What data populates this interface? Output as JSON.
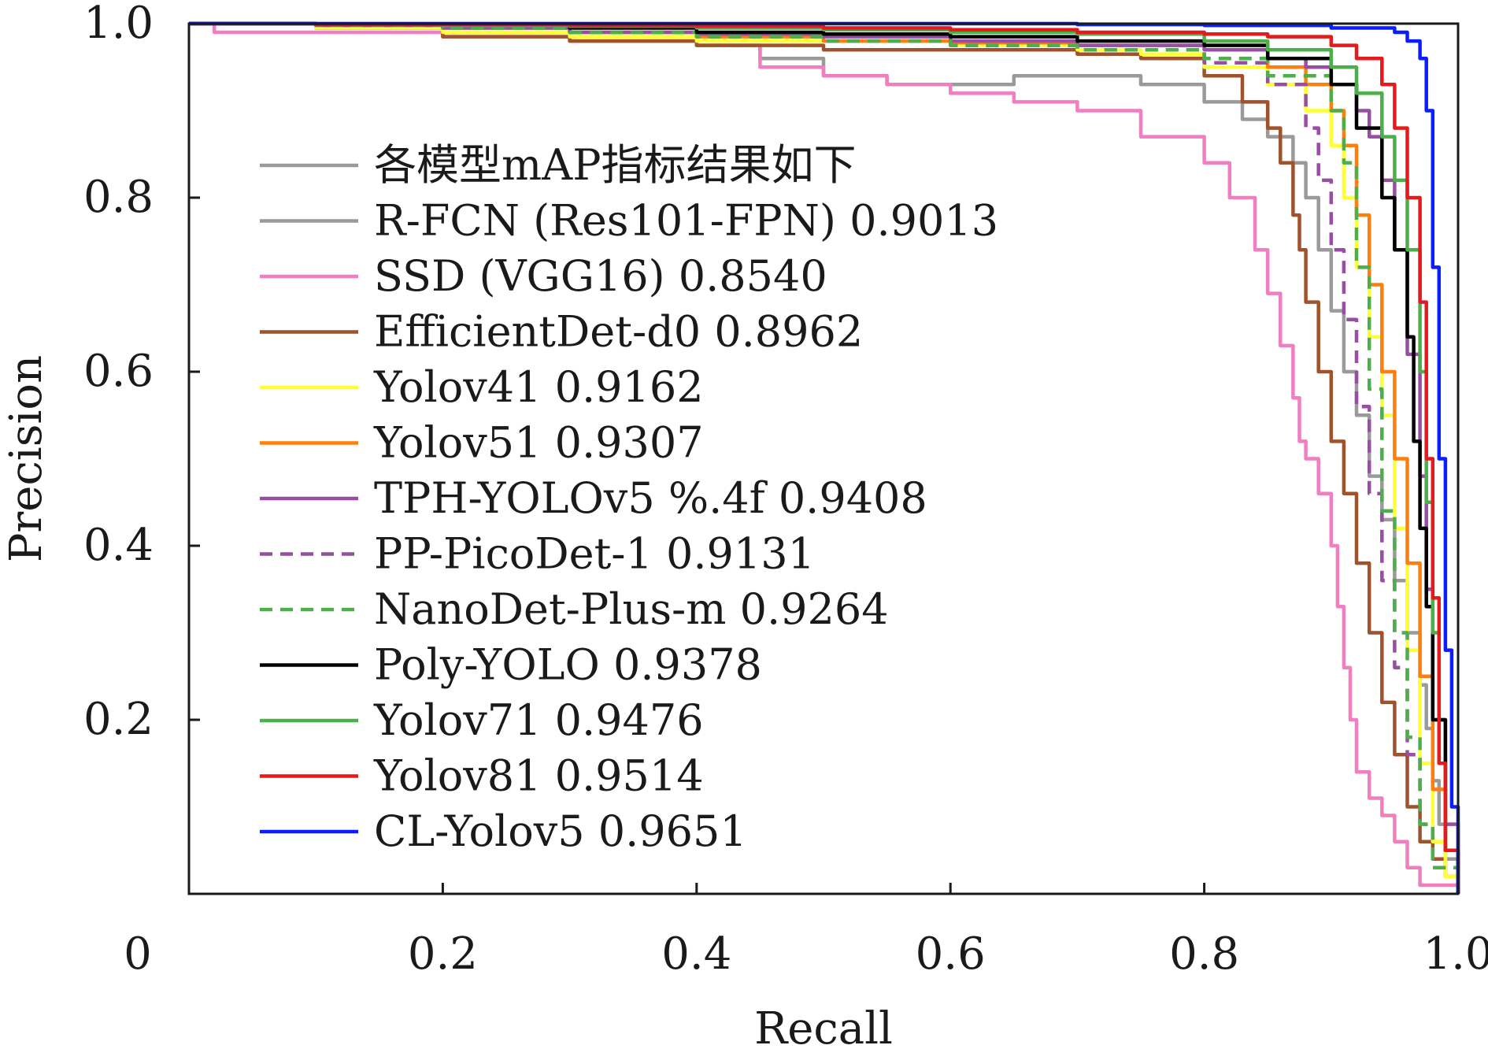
{
  "chart_data": {
    "type": "line",
    "xlabel": "Recall",
    "ylabel": "Precision",
    "xlim": [
      0,
      1.0
    ],
    "ylim": [
      0,
      1.0
    ],
    "x_ticks": [
      "0",
      "0.2",
      "0.4",
      "0.6",
      "0.8",
      "1.0"
    ],
    "y_ticks": [
      "0.2",
      "0.4",
      "0.6",
      "0.8",
      "1.0"
    ],
    "grid": false,
    "legend_position": "center-left",
    "legend_title": "各模型mAP指标结果如下",
    "legend_title_color": "#9a9a9a",
    "series": [
      {
        "name": "R-FCN (Res101-FPN) 0.9013",
        "color": "#9a9a9a",
        "dash": "solid",
        "x": [
          0.0,
          0.1,
          0.2,
          0.3,
          0.4,
          0.45,
          0.5,
          0.55,
          0.6,
          0.65,
          0.7,
          0.75,
          0.8,
          0.83,
          0.85,
          0.87,
          0.88,
          0.89,
          0.9,
          0.91,
          0.92,
          0.93,
          0.94,
          0.95,
          0.96,
          0.97,
          0.975,
          0.98,
          0.985,
          0.99,
          1.0
        ],
        "y": [
          1.0,
          0.995,
          0.99,
          0.985,
          0.975,
          0.96,
          0.94,
          0.93,
          0.93,
          0.94,
          0.94,
          0.93,
          0.91,
          0.89,
          0.87,
          0.84,
          0.8,
          0.74,
          0.67,
          0.6,
          0.55,
          0.48,
          0.43,
          0.36,
          0.3,
          0.24,
          0.19,
          0.13,
          0.08,
          0.04,
          0.0
        ]
      },
      {
        "name": "SSD (VGG16) 0.8540",
        "color": "#f07ec0",
        "dash": "solid",
        "x": [
          0.0,
          0.02,
          0.05,
          0.1,
          0.2,
          0.3,
          0.4,
          0.45,
          0.5,
          0.55,
          0.6,
          0.65,
          0.7,
          0.75,
          0.8,
          0.82,
          0.84,
          0.85,
          0.86,
          0.87,
          0.875,
          0.88,
          0.89,
          0.9,
          0.905,
          0.91,
          0.915,
          0.92,
          0.93,
          0.94,
          0.95,
          0.96,
          0.97,
          1.0
        ],
        "y": [
          1.0,
          0.99,
          0.99,
          0.99,
          0.985,
          0.98,
          0.975,
          0.95,
          0.94,
          0.93,
          0.92,
          0.91,
          0.9,
          0.87,
          0.84,
          0.8,
          0.74,
          0.69,
          0.63,
          0.57,
          0.52,
          0.5,
          0.46,
          0.4,
          0.33,
          0.26,
          0.2,
          0.14,
          0.11,
          0.09,
          0.06,
          0.03,
          0.01,
          0.0
        ]
      },
      {
        "name": "EfficientDet-d0 0.8962",
        "color": "#a0522d",
        "dash": "solid",
        "x": [
          0.0,
          0.1,
          0.2,
          0.3,
          0.4,
          0.5,
          0.6,
          0.7,
          0.75,
          0.8,
          0.83,
          0.85,
          0.86,
          0.87,
          0.875,
          0.88,
          0.89,
          0.9,
          0.91,
          0.92,
          0.93,
          0.94,
          0.95,
          0.96,
          0.97,
          0.98,
          0.99,
          1.0
        ],
        "y": [
          1.0,
          0.995,
          0.985,
          0.98,
          0.975,
          0.97,
          0.97,
          0.965,
          0.96,
          0.94,
          0.91,
          0.88,
          0.84,
          0.78,
          0.74,
          0.68,
          0.6,
          0.52,
          0.46,
          0.38,
          0.3,
          0.22,
          0.16,
          0.1,
          0.06,
          0.04,
          0.02,
          0.0
        ]
      },
      {
        "name": "Yolov41 0.9162",
        "color": "#ffff33",
        "dash": "solid",
        "x": [
          0.0,
          0.1,
          0.2,
          0.3,
          0.4,
          0.5,
          0.6,
          0.7,
          0.75,
          0.8,
          0.85,
          0.88,
          0.9,
          0.91,
          0.92,
          0.93,
          0.94,
          0.95,
          0.96,
          0.97,
          0.98,
          0.99,
          1.0
        ],
        "y": [
          1.0,
          0.995,
          0.99,
          0.985,
          0.98,
          0.98,
          0.975,
          0.97,
          0.965,
          0.95,
          0.93,
          0.9,
          0.86,
          0.8,
          0.72,
          0.64,
          0.55,
          0.42,
          0.28,
          0.15,
          0.06,
          0.02,
          0.0
        ]
      },
      {
        "name": "Yolov51 0.9307",
        "color": "#ff7f0e",
        "dash": "solid",
        "x": [
          0.0,
          0.1,
          0.2,
          0.3,
          0.4,
          0.5,
          0.6,
          0.7,
          0.8,
          0.85,
          0.88,
          0.9,
          0.91,
          0.92,
          0.93,
          0.94,
          0.95,
          0.96,
          0.97,
          0.98,
          0.99,
          1.0
        ],
        "y": [
          1.0,
          0.998,
          0.995,
          0.99,
          0.985,
          0.98,
          0.978,
          0.975,
          0.97,
          0.95,
          0.93,
          0.9,
          0.86,
          0.78,
          0.7,
          0.6,
          0.5,
          0.38,
          0.25,
          0.12,
          0.05,
          0.0
        ]
      },
      {
        "name": "TPH-YOLOv5 %.4f 0.9408",
        "color": "#984ea3",
        "dash": "solid",
        "x": [
          0.0,
          0.1,
          0.2,
          0.3,
          0.4,
          0.5,
          0.6,
          0.7,
          0.8,
          0.85,
          0.88,
          0.9,
          0.92,
          0.93,
          0.94,
          0.95,
          0.96,
          0.97,
          0.975,
          0.98,
          0.99,
          1.0
        ],
        "y": [
          1.0,
          0.998,
          0.995,
          0.99,
          0.988,
          0.985,
          0.98,
          0.975,
          0.97,
          0.96,
          0.95,
          0.93,
          0.9,
          0.87,
          0.82,
          0.74,
          0.62,
          0.48,
          0.35,
          0.2,
          0.08,
          0.0
        ]
      },
      {
        "name": "PP-PicoDet-1 0.9131",
        "color": "#984ea3",
        "dash": "dashed",
        "x": [
          0.0,
          0.1,
          0.2,
          0.3,
          0.4,
          0.5,
          0.6,
          0.7,
          0.8,
          0.85,
          0.88,
          0.89,
          0.9,
          0.91,
          0.92,
          0.93,
          0.94,
          0.95,
          0.96,
          0.97,
          0.98,
          1.0
        ],
        "y": [
          1.0,
          0.998,
          0.995,
          0.99,
          0.985,
          0.98,
          0.975,
          0.97,
          0.955,
          0.93,
          0.88,
          0.82,
          0.74,
          0.66,
          0.56,
          0.46,
          0.36,
          0.26,
          0.16,
          0.08,
          0.03,
          0.0
        ]
      },
      {
        "name": "NanoDet-Plus-m 0.9264",
        "color": "#4daf4a",
        "dash": "dashed",
        "x": [
          0.0,
          0.1,
          0.2,
          0.3,
          0.4,
          0.5,
          0.6,
          0.7,
          0.8,
          0.85,
          0.9,
          0.91,
          0.92,
          0.93,
          0.94,
          0.95,
          0.96,
          0.97,
          0.98,
          1.0
        ],
        "y": [
          1.0,
          0.998,
          0.995,
          0.99,
          0.985,
          0.98,
          0.975,
          0.97,
          0.96,
          0.94,
          0.9,
          0.84,
          0.72,
          0.58,
          0.44,
          0.3,
          0.18,
          0.08,
          0.03,
          0.0
        ]
      },
      {
        "name": "Poly-YOLO 0.9378",
        "color": "#000000",
        "dash": "solid",
        "x": [
          0.0,
          0.1,
          0.2,
          0.3,
          0.4,
          0.5,
          0.6,
          0.7,
          0.8,
          0.85,
          0.9,
          0.92,
          0.94,
          0.95,
          0.96,
          0.965,
          0.97,
          0.975,
          0.98,
          0.99,
          1.0
        ],
        "y": [
          1.0,
          0.999,
          0.998,
          0.995,
          0.99,
          0.988,
          0.985,
          0.98,
          0.975,
          0.96,
          0.93,
          0.88,
          0.8,
          0.74,
          0.64,
          0.52,
          0.42,
          0.33,
          0.2,
          0.05,
          0.0
        ]
      },
      {
        "name": "Yolov71 0.9476",
        "color": "#4daf4a",
        "dash": "solid",
        "x": [
          0.0,
          0.1,
          0.2,
          0.3,
          0.4,
          0.5,
          0.6,
          0.7,
          0.8,
          0.85,
          0.9,
          0.92,
          0.94,
          0.95,
          0.96,
          0.97,
          0.975,
          0.98,
          0.985,
          0.99,
          1.0
        ],
        "y": [
          1.0,
          0.999,
          0.998,
          0.997,
          0.995,
          0.993,
          0.99,
          0.988,
          0.98,
          0.97,
          0.95,
          0.92,
          0.87,
          0.82,
          0.74,
          0.6,
          0.45,
          0.3,
          0.15,
          0.05,
          0.0
        ]
      },
      {
        "name": "Yolov81 0.9514",
        "color": "#e41a1c",
        "dash": "solid",
        "x": [
          0.0,
          0.1,
          0.2,
          0.3,
          0.4,
          0.5,
          0.6,
          0.7,
          0.8,
          0.85,
          0.9,
          0.92,
          0.94,
          0.95,
          0.96,
          0.97,
          0.975,
          0.98,
          0.985,
          0.99,
          1.0
        ],
        "y": [
          1.0,
          0.999,
          0.999,
          0.998,
          0.997,
          0.995,
          0.993,
          0.99,
          0.988,
          0.985,
          0.975,
          0.96,
          0.93,
          0.88,
          0.8,
          0.68,
          0.5,
          0.34,
          0.15,
          0.05,
          0.0
        ]
      },
      {
        "name": "CL-Yolov5 0.9651",
        "color": "#0a1fff",
        "dash": "solid",
        "x": [
          0.0,
          0.1,
          0.2,
          0.3,
          0.4,
          0.5,
          0.6,
          0.7,
          0.8,
          0.9,
          0.95,
          0.96,
          0.97,
          0.975,
          0.98,
          0.985,
          0.99,
          0.995,
          1.0
        ],
        "y": [
          1.0,
          1.0,
          1.0,
          1.0,
          1.0,
          1.0,
          1.0,
          0.999,
          0.998,
          0.995,
          0.99,
          0.98,
          0.96,
          0.9,
          0.72,
          0.5,
          0.28,
          0.1,
          0.0
        ]
      }
    ]
  }
}
